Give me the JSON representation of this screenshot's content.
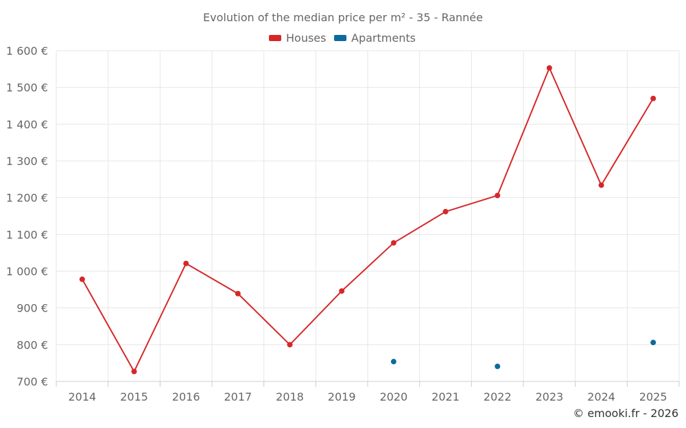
{
  "chart_data": {
    "type": "line",
    "title": "Evolution of the median price per m² - 35 - Rannée",
    "credit": "© emooki.fr - 2026",
    "categories": [
      "2014",
      "2015",
      "2016",
      "2017",
      "2018",
      "2019",
      "2020",
      "2021",
      "2022",
      "2023",
      "2024",
      "2025"
    ],
    "y_ticks": [
      700,
      800,
      900,
      1000,
      1100,
      1200,
      1300,
      1400,
      1500,
      1600
    ],
    "y_tick_labels": [
      "700 €",
      "800 €",
      "900 €",
      "1 000 €",
      "1 100 €",
      "1 200 €",
      "1 300 €",
      "1 400 €",
      "1 500 €",
      "1 600 €"
    ],
    "ylim": [
      700,
      1600
    ],
    "grid": true,
    "legend_position": "top-center",
    "series": [
      {
        "name": "Houses",
        "color": "#d62728",
        "values": [
          978,
          727,
          1021,
          939,
          800,
          946,
          1077,
          1162,
          1206,
          1553,
          1234,
          1470
        ]
      },
      {
        "name": "Apartments",
        "color": "#0d6a9e",
        "values": [
          null,
          null,
          null,
          null,
          null,
          null,
          754,
          null,
          741,
          null,
          null,
          806
        ]
      }
    ]
  }
}
